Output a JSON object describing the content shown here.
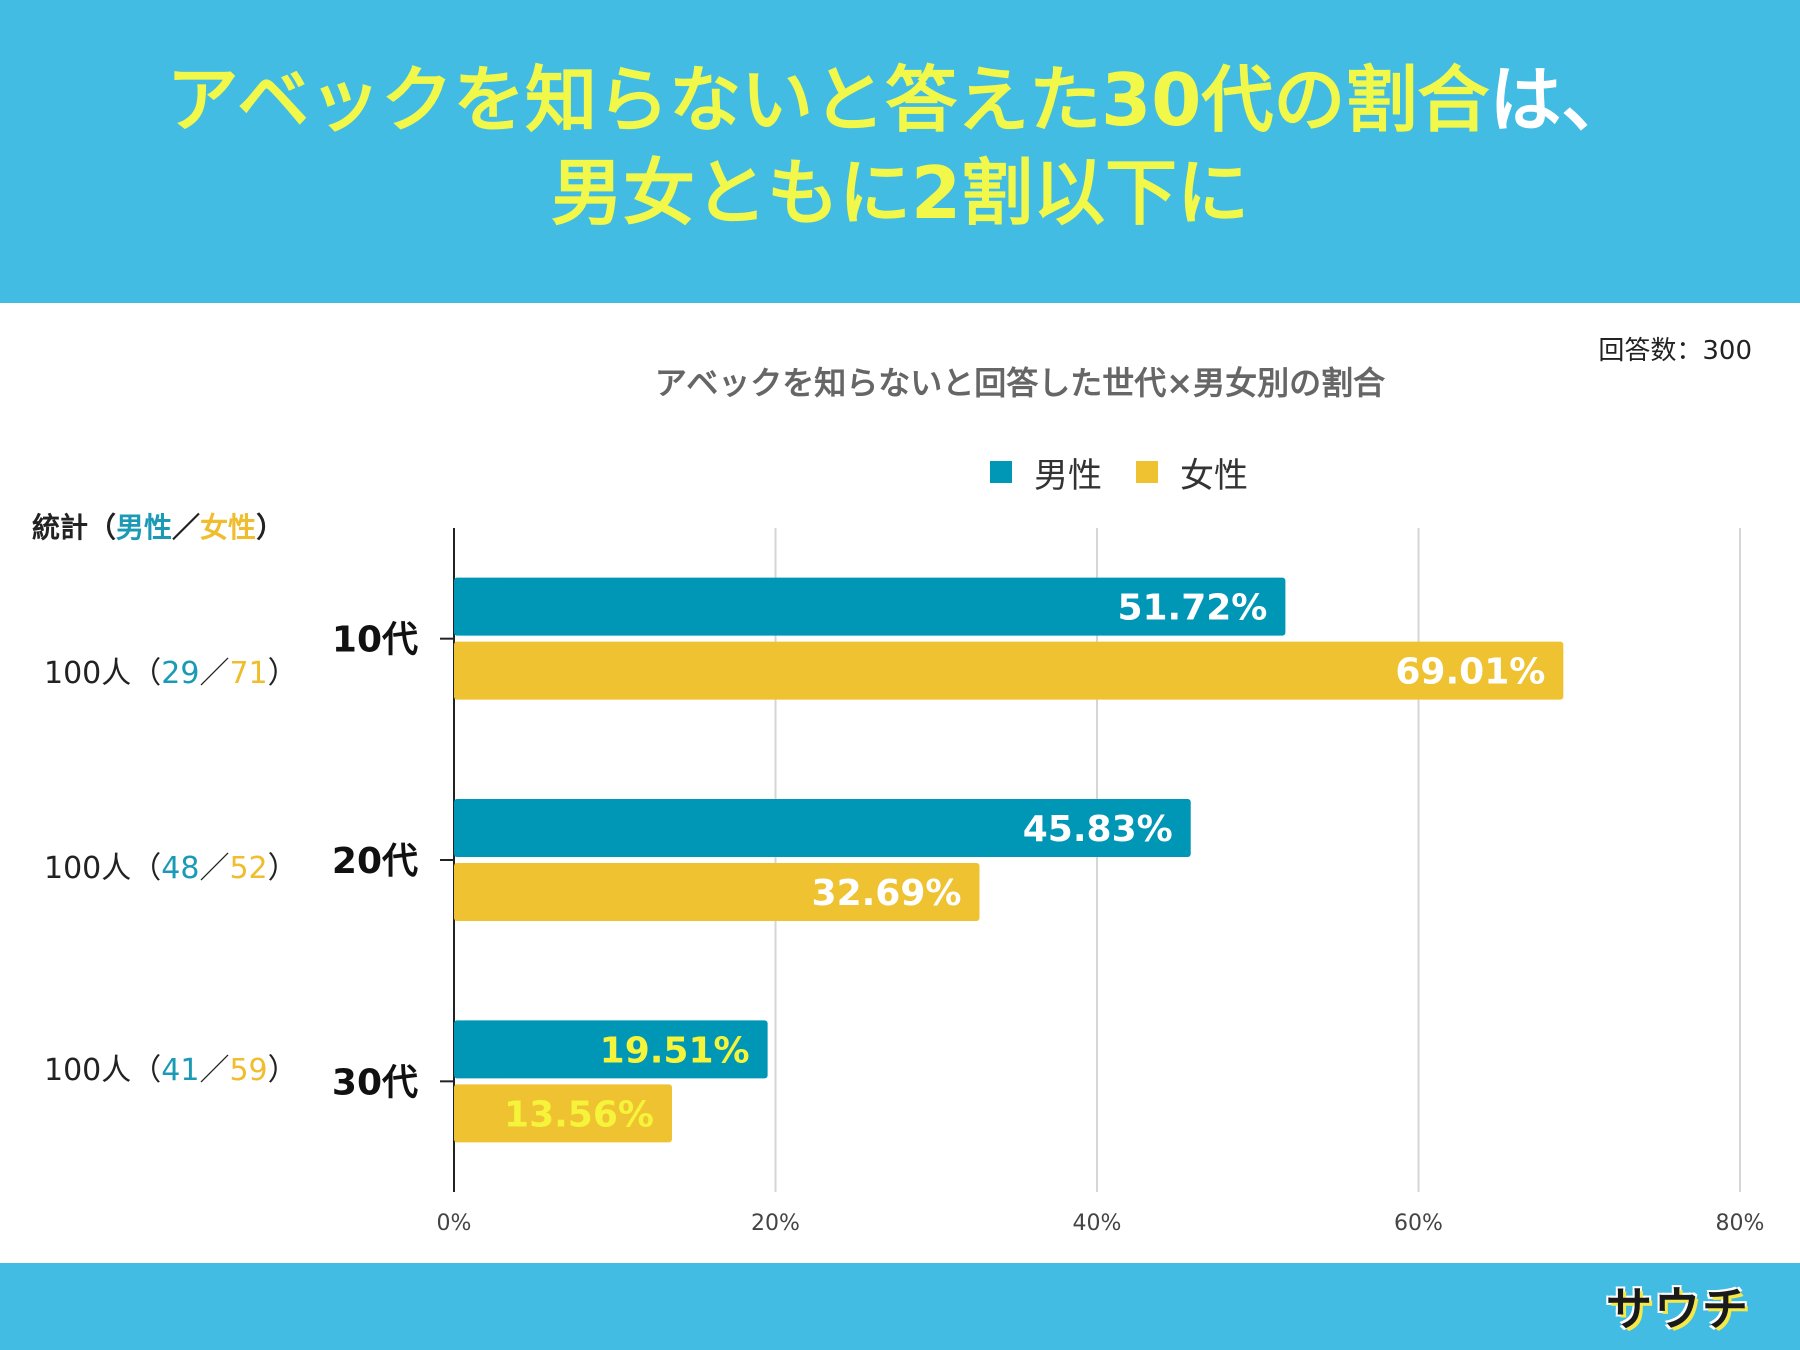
{
  "header": {
    "line1_main": "アベックを知らないと答えた30代の割合",
    "line1_tail": "は、",
    "line2": "男女ともに2割以下に"
  },
  "respondents": "回答数：300",
  "stats_header": {
    "prefix": "統計（",
    "male": "男性",
    "sep": "／",
    "female": "女性",
    "suffix": "）"
  },
  "stats": [
    {
      "total": "100人（",
      "male": "29",
      "sep": "／",
      "female": "71",
      "close": "）"
    },
    {
      "total": "100人（",
      "male": "48",
      "sep": "／",
      "female": "52",
      "close": "）"
    },
    {
      "total": "100人（",
      "male": "41",
      "sep": "／",
      "female": "59",
      "close": "）"
    }
  ],
  "legend": {
    "male": "男性",
    "female": "女性"
  },
  "colors": {
    "male": "#0096b6",
    "female": "#efc232",
    "highlight_label": "#f5f33a"
  },
  "chart_data": {
    "type": "bar",
    "orientation": "horizontal",
    "title": "アベックを知らないと回答した世代×男女別の割合",
    "categories": [
      "10代",
      "20代",
      "30代"
    ],
    "series": [
      {
        "name": "男性",
        "values": [
          51.72,
          45.83,
          19.51
        ],
        "labels": [
          "51.72%",
          "45.83%",
          "19.51%"
        ]
      },
      {
        "name": "女性",
        "values": [
          69.01,
          32.69,
          13.56
        ],
        "labels": [
          "69.01%",
          "32.69%",
          "13.56%"
        ]
      }
    ],
    "highlight_category": "30代",
    "xlim": [
      0,
      80
    ],
    "xticks": [
      "0%",
      "20%",
      "40%",
      "60%",
      "80%"
    ],
    "grid": true
  },
  "footer": {
    "logo": "サウチ"
  }
}
